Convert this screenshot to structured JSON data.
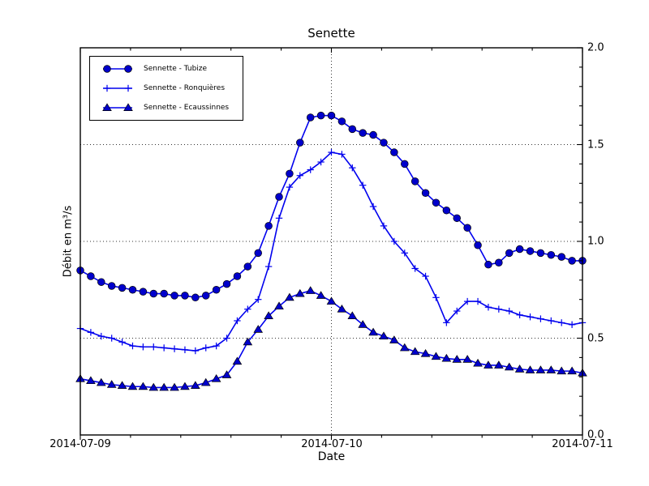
{
  "chart_data": {
    "type": "line",
    "title": "Senette",
    "xlabel": "Date",
    "ylabel": "Débit en m³/s",
    "x_tick_labels": [
      "2014-07-09",
      "2014-07-10",
      "2014-07-11"
    ],
    "y_tick_labels": [
      "2.0",
      "1.5",
      "1.0",
      "0.5",
      "0.0"
    ],
    "ylim": [
      0.0,
      2.0
    ],
    "xlim_hours": [
      0,
      48
    ],
    "x_sampling": "hourly from 2014-07-09 00:00 to 2014-07-11 00:00",
    "grid": true,
    "grid_style": "dotted",
    "legend_position": "upper left",
    "axis_color": "#000000",
    "series": [
      {
        "name": "Sennette - Tubize",
        "marker": "circle",
        "color": "#0000ee",
        "marker_fill": "#0000cc",
        "values": [
          0.85,
          0.82,
          0.79,
          0.77,
          0.76,
          0.75,
          0.74,
          0.73,
          0.73,
          0.72,
          0.72,
          0.71,
          0.72,
          0.75,
          0.78,
          0.82,
          0.87,
          0.94,
          1.08,
          1.23,
          1.35,
          1.51,
          1.64,
          1.65,
          1.65,
          1.62,
          1.58,
          1.56,
          1.55,
          1.51,
          1.46,
          1.4,
          1.31,
          1.25,
          1.2,
          1.16,
          1.12,
          1.07,
          0.98,
          0.88,
          0.89,
          0.94,
          0.96,
          0.95,
          0.94,
          0.93,
          0.92,
          0.9,
          0.9
        ]
      },
      {
        "name": "Sennette - Ronquières",
        "marker": "plus",
        "color": "#0000ee",
        "marker_fill": "#0000ee",
        "values": [
          0.55,
          0.53,
          0.51,
          0.5,
          0.48,
          0.46,
          0.455,
          0.455,
          0.45,
          0.445,
          0.44,
          0.435,
          0.45,
          0.46,
          0.5,
          0.59,
          0.65,
          0.7,
          0.87,
          1.12,
          1.28,
          1.34,
          1.37,
          1.41,
          1.46,
          1.45,
          1.38,
          1.29,
          1.18,
          1.08,
          1.0,
          0.94,
          0.86,
          0.82,
          0.71,
          0.58,
          0.64,
          0.69,
          0.69,
          0.66,
          0.65,
          0.64,
          0.62,
          0.61,
          0.6,
          0.59,
          0.58,
          0.57,
          0.58
        ]
      },
      {
        "name": "Sennette - Ecaussinnes",
        "marker": "triangle",
        "color": "#0000ee",
        "marker_fill": "#0000cc",
        "values": [
          0.29,
          0.28,
          0.27,
          0.26,
          0.255,
          0.25,
          0.25,
          0.245,
          0.245,
          0.245,
          0.25,
          0.255,
          0.27,
          0.29,
          0.31,
          0.38,
          0.48,
          0.545,
          0.615,
          0.665,
          0.71,
          0.73,
          0.745,
          0.72,
          0.69,
          0.65,
          0.615,
          0.57,
          0.53,
          0.51,
          0.49,
          0.45,
          0.43,
          0.42,
          0.405,
          0.395,
          0.39,
          0.39,
          0.37,
          0.36,
          0.36,
          0.35,
          0.34,
          0.335,
          0.335,
          0.335,
          0.33,
          0.33,
          0.32
        ]
      }
    ]
  }
}
